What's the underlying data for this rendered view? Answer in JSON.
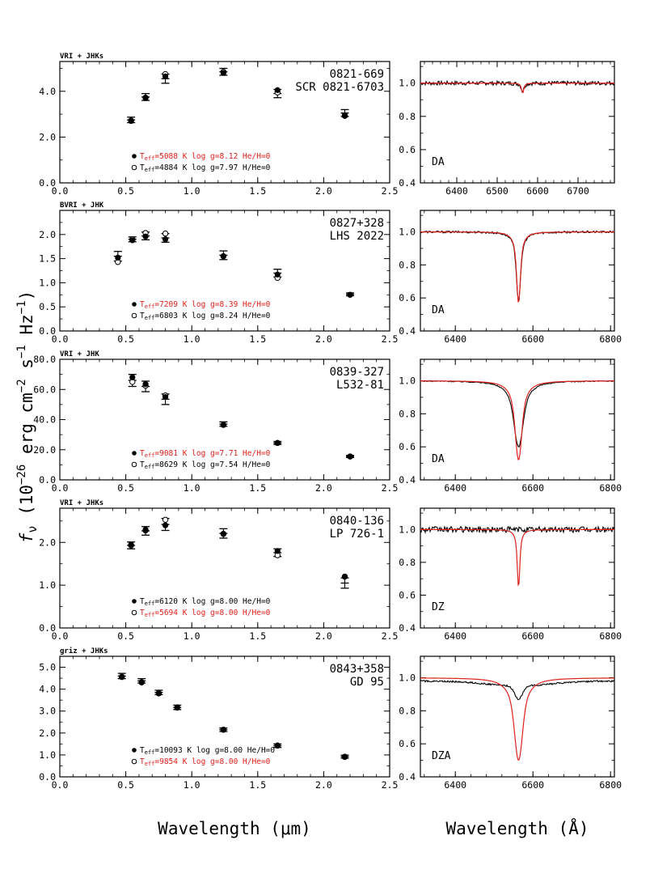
{
  "figure": {
    "ylabel_parts": [
      "f",
      "ν",
      " (10",
      "−26",
      " erg cm",
      "−2",
      " s",
      "−1",
      " Hz",
      "−1",
      ")"
    ],
    "xlabel_sed": "Wavelength (μm)",
    "xlabel_spec": "Wavelength (Å)",
    "colors": {
      "model_red": "#e0201b",
      "black": "#000000"
    }
  },
  "chart_data": [
    {
      "type": "scatter",
      "panel": "sed",
      "id": "0821-669",
      "band_label": "VRI + JHKs",
      "name_line1": "0821-669",
      "name_line2": "SCR 0821-6703",
      "xlim": [
        0.0,
        2.5
      ],
      "ylim": [
        0.0,
        5.3
      ],
      "xticks": [
        0.0,
        0.5,
        1.0,
        1.5,
        2.0,
        2.5
      ],
      "xtick_labels": [
        "0.0",
        "0.5",
        "1.0",
        "1.5",
        "2.0",
        "2.5"
      ],
      "yticks": [
        0.0,
        2.0,
        4.0
      ],
      "ytick_labels": [
        "0.0",
        "2.0",
        "4.0"
      ],
      "yminor": [
        1.0,
        3.0,
        5.0
      ],
      "obs": [
        {
          "x": 0.54,
          "y": 2.75,
          "err": 0.12
        },
        {
          "x": 0.65,
          "y": 3.75,
          "err": 0.15
        },
        {
          "x": 0.8,
          "y": 4.55,
          "err": 0.2
        },
        {
          "x": 1.24,
          "y": 4.85,
          "err": 0.15
        },
        {
          "x": 1.65,
          "y": 3.9,
          "err": 0.18
        },
        {
          "x": 2.16,
          "y": 3.05,
          "err": 0.15
        }
      ],
      "model_filled": [
        2.7,
        3.7,
        4.65,
        4.8,
        4.05,
        2.92
      ],
      "model_open": [
        2.72,
        3.72,
        4.75,
        4.85,
        3.95,
        2.95
      ],
      "legend": [
        {
          "marker": "filled",
          "color": "red",
          "teff_label": "T",
          "teff_sub": "eff",
          "text": "=5088 K  log g=8.12  He/H=0"
        },
        {
          "marker": "open",
          "color": "black",
          "teff_label": "T",
          "teff_sub": "eff",
          "text": "=4884 K  log g=7.97  H/He=0"
        }
      ]
    },
    {
      "type": "scatter",
      "panel": "sed",
      "id": "0827+328",
      "band_label": "BVRI + JHK",
      "name_line1": "0827+328",
      "name_line2": "LHS 2022",
      "xlim": [
        0.0,
        2.5
      ],
      "ylim": [
        0.0,
        2.5
      ],
      "xticks": [
        0.0,
        0.5,
        1.0,
        1.5,
        2.0,
        2.5
      ],
      "xtick_labels": [
        "0.0",
        "0.5",
        "1.0",
        "1.5",
        "2.0",
        "2.5"
      ],
      "yticks": [
        0.0,
        0.5,
        1.0,
        1.5,
        2.0
      ],
      "ytick_labels": [
        "0.0",
        "0.5",
        "1.0",
        "1.5",
        "2.0"
      ],
      "yminor": [
        0.25,
        0.75,
        1.25,
        1.75,
        2.25
      ],
      "obs": [
        {
          "x": 0.44,
          "y": 1.55,
          "err": 0.1
        },
        {
          "x": 0.55,
          "y": 1.9,
          "err": 0.05
        },
        {
          "x": 0.65,
          "y": 1.97,
          "err": 0.08
        },
        {
          "x": 0.8,
          "y": 1.93,
          "err": 0.09
        },
        {
          "x": 1.24,
          "y": 1.57,
          "err": 0.09
        },
        {
          "x": 1.65,
          "y": 1.2,
          "err": 0.08
        },
        {
          "x": 2.2,
          "y": 0.76,
          "err": 0.03
        }
      ],
      "model_filled": [
        1.52,
        1.88,
        1.96,
        1.9,
        1.55,
        1.17,
        0.75
      ],
      "model_open": [
        1.43,
        1.9,
        2.03,
        2.02,
        1.55,
        1.1,
        0.75
      ],
      "legend": [
        {
          "marker": "filled",
          "color": "red",
          "teff_label": "T",
          "teff_sub": "eff",
          "text": "=7209 K  log g=8.39  He/H=0"
        },
        {
          "marker": "open",
          "color": "black",
          "teff_label": "T",
          "teff_sub": "eff",
          "text": "=6803 K  log g=8.24  H/He=0"
        }
      ]
    },
    {
      "type": "scatter",
      "panel": "sed",
      "id": "0839-327",
      "band_label": "VRI + JHK",
      "name_line1": "0839-327",
      "name_line2": "L532-81",
      "xlim": [
        0.0,
        2.5
      ],
      "ylim": [
        0.0,
        80.0
      ],
      "xticks": [
        0.0,
        0.5,
        1.0,
        1.5,
        2.0,
        2.5
      ],
      "xtick_labels": [
        "0.0",
        "0.5",
        "1.0",
        "1.5",
        "2.0",
        "2.5"
      ],
      "yticks": [
        0.0,
        20.0,
        40.0,
        60.0,
        80.0
      ],
      "ytick_labels": [
        "0.0",
        "20.0",
        "40.0",
        "60.0",
        "80.0"
      ],
      "yminor": [
        10.0,
        30.0,
        50.0,
        70.0
      ],
      "obs": [
        {
          "x": 0.55,
          "y": 66.0,
          "err": 4.0
        },
        {
          "x": 0.65,
          "y": 62.0,
          "err": 3.5
        },
        {
          "x": 0.8,
          "y": 53.5,
          "err": 3.5
        },
        {
          "x": 1.24,
          "y": 37.0,
          "err": 1.5
        },
        {
          "x": 1.65,
          "y": 24.5,
          "err": 1.0
        },
        {
          "x": 2.2,
          "y": 15.5,
          "err": 0.7
        }
      ],
      "model_filled": [
        68.0,
        63.5,
        55.0,
        36.5,
        24.5,
        15.5
      ],
      "model_open": [
        65.0,
        62.5,
        56.0,
        36.5,
        24.5,
        15.5
      ],
      "legend": [
        {
          "marker": "filled",
          "color": "red",
          "teff_label": "T",
          "teff_sub": "eff",
          "text": "=9081 K  log g=7.71  He/H=0"
        },
        {
          "marker": "open",
          "color": "black",
          "teff_label": "T",
          "teff_sub": "eff",
          "text": "=8629 K  log g=7.54  H/He=0"
        }
      ]
    },
    {
      "type": "scatter",
      "panel": "sed",
      "id": "0840-136",
      "band_label": "VRI + JHKs",
      "name_line1": "0840-136",
      "name_line2": "LP 726-1",
      "xlim": [
        0.0,
        2.5
      ],
      "ylim": [
        0.0,
        2.8
      ],
      "xticks": [
        0.0,
        0.5,
        1.0,
        1.5,
        2.0,
        2.5
      ],
      "xtick_labels": [
        "0.0",
        "0.5",
        "1.0",
        "1.5",
        "2.0",
        "2.5"
      ],
      "yticks": [
        0.0,
        1.0,
        2.0
      ],
      "ytick_labels": [
        "0.0",
        "1.0",
        "2.0"
      ],
      "yminor": [
        0.5,
        1.5,
        2.5
      ],
      "obs": [
        {
          "x": 0.54,
          "y": 1.93,
          "err": 0.08
        },
        {
          "x": 0.65,
          "y": 2.27,
          "err": 0.1
        },
        {
          "x": 0.8,
          "y": 2.42,
          "err": 0.14
        },
        {
          "x": 1.24,
          "y": 2.21,
          "err": 0.11
        },
        {
          "x": 1.65,
          "y": 1.76,
          "err": 0.09
        },
        {
          "x": 2.16,
          "y": 1.05,
          "err": 0.12
        }
      ],
      "model_filled": [
        1.95,
        2.3,
        2.4,
        2.2,
        1.8,
        1.2
      ],
      "model_open": [
        1.93,
        2.28,
        2.53,
        2.2,
        1.7,
        1.2
      ],
      "legend": [
        {
          "marker": "filled",
          "color": "black",
          "teff_label": "T",
          "teff_sub": "eff",
          "text": "=6120 K  log g=8.00  He/H=0"
        },
        {
          "marker": "open",
          "color": "red",
          "teff_label": "T",
          "teff_sub": "eff",
          "text": "=5694 K  log g=8.00  H/He=0"
        }
      ]
    },
    {
      "type": "scatter",
      "panel": "sed",
      "id": "0843+358",
      "band_label": "griz + JHKs",
      "name_line1": "0843+358",
      "name_line2": "GD 95",
      "xlim": [
        0.0,
        2.5
      ],
      "ylim": [
        0.0,
        5.5
      ],
      "xticks": [
        0.0,
        0.5,
        1.0,
        1.5,
        2.0,
        2.5
      ],
      "xtick_labels": [
        "0.0",
        "0.5",
        "1.0",
        "1.5",
        "2.0",
        "2.5"
      ],
      "yticks": [
        0.0,
        1.0,
        2.0,
        3.0,
        4.0,
        5.0
      ],
      "ytick_labels": [
        "0.0",
        "1.0",
        "2.0",
        "3.0",
        "4.0",
        "5.0"
      ],
      "yminor": [
        0.5,
        1.5,
        2.5,
        3.5,
        4.5
      ],
      "obs": [
        {
          "x": 0.47,
          "y": 4.6,
          "err": 0.12
        },
        {
          "x": 0.62,
          "y": 4.38,
          "err": 0.1
        },
        {
          "x": 0.75,
          "y": 3.85,
          "err": 0.1
        },
        {
          "x": 0.89,
          "y": 3.17,
          "err": 0.1
        },
        {
          "x": 1.24,
          "y": 2.15,
          "err": 0.08
        },
        {
          "x": 1.65,
          "y": 1.42,
          "err": 0.08
        },
        {
          "x": 2.16,
          "y": 0.92,
          "err": 0.07
        }
      ],
      "model_filled": [
        4.55,
        4.3,
        3.8,
        3.15,
        2.15,
        1.42,
        0.9
      ],
      "model_open": [
        4.57,
        4.32,
        3.82,
        3.17,
        2.15,
        1.43,
        0.92
      ],
      "legend": [
        {
          "marker": "filled",
          "color": "black",
          "teff_label": "T",
          "teff_sub": "eff",
          "text": "=10093 K  log g=8.00  He/H=0"
        },
        {
          "marker": "open",
          "color": "red",
          "teff_label": "T",
          "teff_sub": "eff",
          "text": "=9854 K  log g=8.00  H/He=0"
        }
      ]
    },
    {
      "type": "line",
      "panel": "spec",
      "id": "0821-669",
      "class_label": "DA",
      "xlim": [
        6310,
        6790
      ],
      "ylim": [
        0.4,
        1.13
      ],
      "xticks": [
        6400,
        6500,
        6600,
        6700
      ],
      "xtick_labels": [
        "6400",
        "6500",
        "6600",
        "6700"
      ],
      "yticks": [
        0.4,
        0.6,
        0.8,
        1.0
      ],
      "ytick_labels": [
        "0.4",
        "0.6",
        "0.8",
        "1.0"
      ],
      "center": 6563,
      "model_depth": 0.06,
      "model_width": 5,
      "obs_depth": 0.05,
      "obs_width": 6,
      "noise": 0.012
    },
    {
      "type": "line",
      "panel": "spec",
      "id": "0827+328",
      "class_label": "DA",
      "xlim": [
        6310,
        6810
      ],
      "ylim": [
        0.4,
        1.13
      ],
      "xticks": [
        6400,
        6600,
        6800
      ],
      "xtick_labels": [
        "6400",
        "6600",
        "6800"
      ],
      "yticks": [
        0.4,
        0.6,
        0.8,
        1.0
      ],
      "ytick_labels": [
        "0.4",
        "0.6",
        "0.8",
        "1.0"
      ],
      "center": 6563,
      "model_depth": 0.43,
      "model_width": 9,
      "obs_depth": 0.42,
      "obs_width": 10,
      "noise": 0.006
    },
    {
      "type": "line",
      "panel": "spec",
      "id": "0839-327",
      "class_label": "DA",
      "xlim": [
        6310,
        6810
      ],
      "ylim": [
        0.4,
        1.13
      ],
      "xticks": [
        6400,
        6600,
        6800
      ],
      "xtick_labels": [
        "6400",
        "6600",
        "6800"
      ],
      "yticks": [
        0.4,
        0.6,
        0.8,
        1.0
      ],
      "ytick_labels": [
        "0.4",
        "0.6",
        "0.8",
        "1.0"
      ],
      "center": 6563,
      "model_depth": 0.48,
      "model_width": 16,
      "obs_depth": 0.4,
      "obs_width": 22,
      "noise": 0.003
    },
    {
      "type": "line",
      "panel": "spec",
      "id": "0840-136",
      "class_label": "DZ",
      "xlim": [
        6310,
        6810
      ],
      "ylim": [
        0.4,
        1.13
      ],
      "xticks": [
        6400,
        6600,
        6800
      ],
      "xtick_labels": [
        "6400",
        "6600",
        "6800"
      ],
      "yticks": [
        0.4,
        0.6,
        0.8,
        1.0
      ],
      "ytick_labels": [
        "0.4",
        "0.6",
        "0.8",
        "1.0"
      ],
      "center": 6563,
      "model_depth": 0.35,
      "model_width": 6,
      "obs_depth": 0.0,
      "obs_width": 6,
      "noise": 0.018
    },
    {
      "type": "line",
      "panel": "spec",
      "id": "0843+358",
      "class_label": "DZA",
      "xlim": [
        6310,
        6810
      ],
      "ylim": [
        0.4,
        1.13
      ],
      "xticks": [
        6400,
        6600,
        6800
      ],
      "xtick_labels": [
        "6400",
        "6600",
        "6800"
      ],
      "yticks": [
        0.4,
        0.6,
        0.8,
        1.0
      ],
      "ytick_labels": [
        "0.4",
        "0.6",
        "0.8",
        "1.0"
      ],
      "center": 6563,
      "model_depth": 0.5,
      "model_width": 20,
      "obs_depth": 0.08,
      "obs_width": 12,
      "noise": 0.005
    }
  ]
}
